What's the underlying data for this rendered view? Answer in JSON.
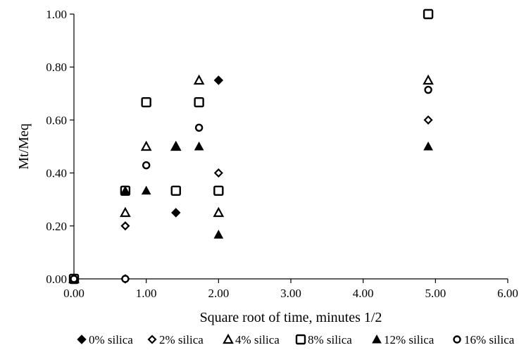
{
  "chart_data": {
    "type": "scatter",
    "xlabel": "Square root of time, minutes 1/2",
    "ylabel": "Mt/Meq",
    "xlim": [
      0,
      6
    ],
    "ylim": [
      0,
      1
    ],
    "x_ticks": [
      "0.00",
      "1.00",
      "2.00",
      "3.00",
      "4.00",
      "5.00",
      "6.00"
    ],
    "y_ticks": [
      "0.00",
      "0.20",
      "0.40",
      "0.60",
      "0.80",
      "1.00"
    ],
    "grid": false,
    "legend_position": "bottom",
    "series": [
      {
        "name": "0% silica",
        "marker": "diamond-filled",
        "x": [
          0,
          0.71,
          1.41,
          2.0
        ],
        "y": [
          0,
          0,
          0.25,
          0.75
        ]
      },
      {
        "name": "2% silica",
        "marker": "diamond-open",
        "x": [
          0,
          0.71,
          2.0,
          4.9
        ],
        "y": [
          0,
          0.2,
          0.4,
          0.6
        ]
      },
      {
        "name": "4% silica",
        "marker": "triangle-open",
        "x": [
          0,
          0.71,
          1.0,
          1.41,
          1.73,
          2.0,
          4.9
        ],
        "y": [
          0,
          0.25,
          0.5,
          0.5,
          0.75,
          0.25,
          0.75
        ]
      },
      {
        "name": "8% silica",
        "marker": "square-open",
        "x": [
          0,
          0.71,
          1.0,
          1.41,
          1.73,
          2.0,
          4.9
        ],
        "y": [
          0,
          0.333,
          0.667,
          0.333,
          0.667,
          0.333,
          1.0
        ]
      },
      {
        "name": "12% silica",
        "marker": "triangle-filled",
        "x": [
          0,
          0.71,
          1.0,
          1.41,
          1.73,
          2.0,
          4.9
        ],
        "y": [
          0,
          0.333,
          0.333,
          0.5,
          0.5,
          0.167,
          0.5
        ]
      },
      {
        "name": "16% silica",
        "marker": "circle-open",
        "x": [
          0,
          0.71,
          1.0,
          1.73,
          4.9
        ],
        "y": [
          0,
          0,
          0.429,
          0.571,
          0.714
        ]
      }
    ]
  }
}
